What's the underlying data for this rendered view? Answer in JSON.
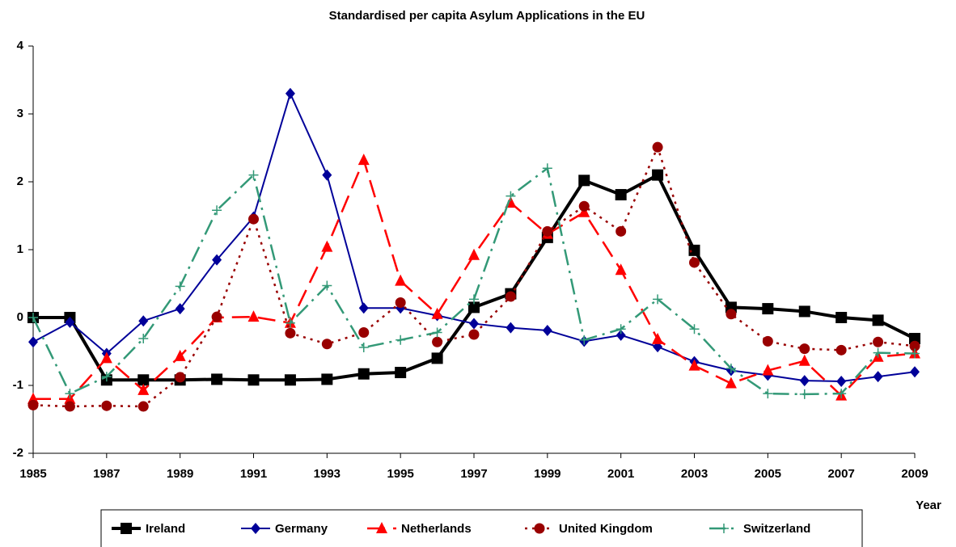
{
  "chart_data": {
    "type": "line",
    "title": "Standardised per capita Asylum Applications in the EU",
    "x_label": "Year",
    "x": [
      1985,
      1986,
      1987,
      1988,
      1989,
      1990,
      1991,
      1992,
      1993,
      1994,
      1995,
      1996,
      1997,
      1998,
      1999,
      2000,
      2001,
      2002,
      2003,
      2004,
      2005,
      2006,
      2007,
      2008,
      2009
    ],
    "xlim": [
      1985,
      2009
    ],
    "xticks": [
      1985,
      1987,
      1989,
      1991,
      1993,
      1995,
      1997,
      1999,
      2001,
      2003,
      2005,
      2007,
      2009
    ],
    "ylim": [
      -2,
      4
    ],
    "yticks": [
      -2,
      -1,
      0,
      1,
      2,
      3,
      4
    ],
    "legend": "bottom",
    "series": [
      {
        "name": "Ireland",
        "color": "#000000",
        "dash": "solid",
        "marker": "square",
        "width": 4,
        "values": [
          0,
          0,
          -0.92,
          -0.92,
          -0.92,
          -0.91,
          -0.92,
          -0.92,
          -0.91,
          -0.83,
          -0.81,
          -0.6,
          0.15,
          0.35,
          1.18,
          2.02,
          1.81,
          2.1,
          0.99,
          0.15,
          0.13,
          0.09,
          0,
          -0.04,
          -0.31
        ]
      },
      {
        "name": "Germany",
        "color": "#000099",
        "dash": "solid",
        "marker": "diamond",
        "width": 2,
        "values": [
          -0.36,
          -0.07,
          -0.53,
          -0.05,
          0.13,
          0.85,
          1.48,
          3.3,
          2.1,
          0.14,
          0.14,
          0.03,
          -0.09,
          -0.15,
          -0.19,
          -0.35,
          -0.26,
          -0.43,
          -0.65,
          -0.78,
          -0.85,
          -0.93,
          -0.94,
          -0.87,
          -0.8
        ]
      },
      {
        "name": "Netherlands",
        "color": "#ff0000",
        "dash": "long",
        "marker": "triangle",
        "width": 2.5,
        "values": [
          -1.2,
          -1.2,
          -0.6,
          -1.07,
          -0.57,
          0,
          0.01,
          -0.08,
          1.04,
          2.32,
          0.54,
          0.05,
          0.92,
          1.69,
          1.23,
          1.55,
          0.7,
          -0.32,
          -0.71,
          -0.97,
          -0.78,
          -0.64,
          -1.15,
          -0.58,
          -0.53
        ]
      },
      {
        "name": "United Kingdom",
        "color": "#990000",
        "dash": "dot",
        "marker": "circle",
        "width": 2.5,
        "values": [
          -1.29,
          -1.31,
          -1.3,
          -1.31,
          -0.88,
          0.01,
          1.45,
          -0.23,
          -0.39,
          -0.22,
          0.22,
          -0.36,
          -0.25,
          0.31,
          1.27,
          1.64,
          1.27,
          2.51,
          0.81,
          0.05,
          -0.35,
          -0.46,
          -0.48,
          -0.36,
          -0.42
        ]
      },
      {
        "name": "Switzerland",
        "color": "#339977",
        "dash": "dashdot",
        "marker": "plus",
        "width": 2.5,
        "values": [
          0,
          -1.12,
          -0.87,
          -0.31,
          0.46,
          1.58,
          2.1,
          -0.08,
          0.47,
          -0.44,
          -0.33,
          -0.22,
          0.27,
          1.79,
          2.2,
          -0.33,
          -0.17,
          0.27,
          -0.17,
          -0.75,
          -1.12,
          -1.13,
          -1.12,
          -0.52,
          -0.53
        ]
      }
    ]
  }
}
